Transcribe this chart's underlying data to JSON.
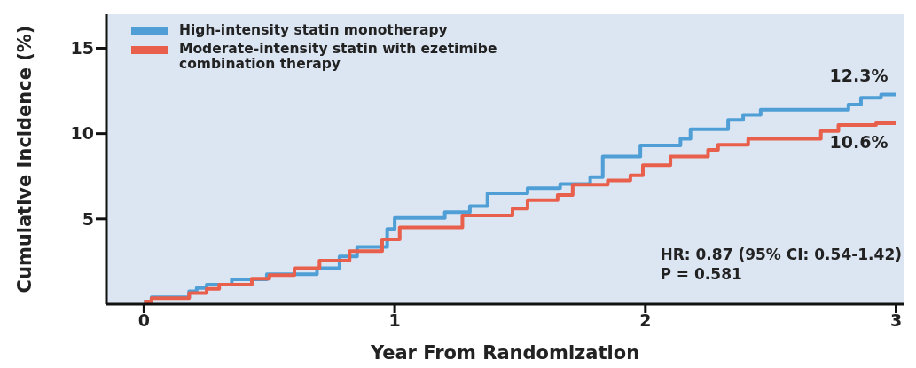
{
  "chart_data": {
    "type": "step",
    "xlabel": "Year From Randomization",
    "ylabel": "Cumulative Incidence (%)",
    "xlim": [
      -0.15,
      3.03
    ],
    "xticks": [
      0,
      1,
      2,
      3
    ],
    "ylim": [
      0,
      17
    ],
    "yticks": [
      5,
      10,
      15
    ],
    "legend": "top left",
    "line_style": "solid",
    "marker": "none",
    "series": [
      {
        "name": "High-intensity statin monotherapy",
        "color": "#4f9fd6",
        "x": [
          0,
          0.03,
          0.18,
          0.21,
          0.25,
          0.35,
          0.49,
          0.69,
          0.78,
          0.85,
          0.97,
          1.0,
          1.2,
          1.3,
          1.37,
          1.53,
          1.66,
          1.78,
          1.83,
          1.98,
          2.14,
          2.18,
          2.33,
          2.39,
          2.46,
          2.81,
          2.86,
          2.94,
          3.0
        ],
        "values": [
          0.15,
          0.4,
          0.75,
          0.95,
          1.15,
          1.45,
          1.75,
          2.1,
          2.8,
          3.35,
          4.4,
          5.05,
          5.4,
          5.75,
          6.5,
          6.8,
          7.05,
          7.45,
          8.65,
          9.3,
          9.7,
          10.25,
          10.8,
          11.1,
          11.4,
          11.7,
          12.1,
          12.3,
          12.3
        ]
      },
      {
        "name": "Moderate-intensity statin with ezetimibe combination therapy",
        "color": "#e8604c",
        "x": [
          0,
          0.03,
          0.18,
          0.25,
          0.3,
          0.43,
          0.5,
          0.6,
          0.7,
          0.82,
          0.95,
          1.02,
          1.27,
          1.47,
          1.53,
          1.65,
          1.71,
          1.85,
          1.94,
          1.99,
          2.1,
          2.25,
          2.29,
          2.41,
          2.7,
          2.77,
          2.92,
          3.0
        ],
        "values": [
          0.15,
          0.35,
          0.65,
          0.9,
          1.15,
          1.5,
          1.7,
          2.1,
          2.55,
          3.1,
          3.8,
          4.5,
          5.2,
          5.6,
          6.1,
          6.4,
          7.0,
          7.25,
          7.55,
          8.15,
          8.65,
          9.05,
          9.35,
          9.7,
          10.15,
          10.5,
          10.6,
          10.6
        ]
      }
    ],
    "annotations": [
      {
        "text": "12.3%",
        "x": 3,
        "y": 12.3
      },
      {
        "text": "10.6%",
        "x": 3,
        "y": 10.6
      },
      "HR: 0.87 (95% CI: 0.54-1.42)",
      "P = 0.581"
    ]
  }
}
